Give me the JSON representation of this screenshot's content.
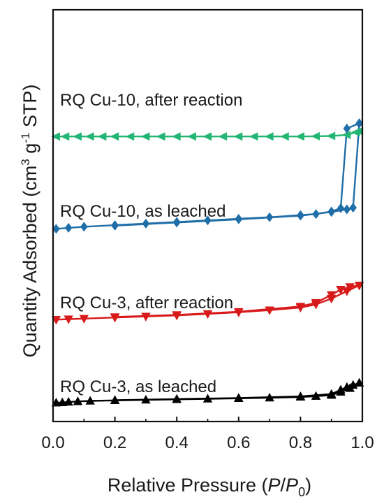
{
  "chart_data": {
    "type": "line",
    "xlabel": "Relative Pressure (P/P0)",
    "xlabel_parts": [
      "Relative Pressure (",
      "P",
      "/",
      "P",
      "0",
      ")"
    ],
    "ylabel": "Quantity Adsorbed (cm3 g-1 STP)",
    "ylabel_parts": [
      "Quantity Adsorbed (cm",
      "3",
      " g",
      "-1",
      " STP)"
    ],
    "xlim": [
      0.0,
      1.0
    ],
    "xticks": [
      "0.0",
      "0.2",
      "0.4",
      "0.6",
      "0.8",
      "1.0"
    ],
    "yticks_shown": false,
    "grid": false,
    "legend": "none",
    "series": [
      {
        "name": "RQ Cu-3, as leached",
        "color": "#000000",
        "marker": "triangle-up",
        "adsorption": [
          [
            0.01,
            0.55
          ],
          [
            0.03,
            0.6
          ],
          [
            0.05,
            0.7
          ],
          [
            0.08,
            0.8
          ],
          [
            0.12,
            0.9
          ],
          [
            0.2,
            1.0
          ],
          [
            0.3,
            1.1
          ],
          [
            0.4,
            1.2
          ],
          [
            0.5,
            1.3
          ],
          [
            0.6,
            1.4
          ],
          [
            0.7,
            1.5
          ],
          [
            0.8,
            1.65
          ],
          [
            0.85,
            1.8
          ],
          [
            0.9,
            2.0
          ],
          [
            0.93,
            2.6
          ],
          [
            0.96,
            3.3
          ],
          [
            0.99,
            4.3
          ]
        ],
        "desorption": [
          [
            0.99,
            4.3
          ],
          [
            0.97,
            3.9
          ],
          [
            0.95,
            3.5
          ],
          [
            0.93,
            3.0
          ],
          [
            0.9,
            2.2
          ],
          [
            0.8,
            1.75
          ],
          [
            0.6,
            1.45
          ],
          [
            0.4,
            1.25
          ],
          [
            0.2,
            1.05
          ]
        ]
      },
      {
        "name": "RQ Cu-3, after reaction",
        "color": "#d91a1a",
        "marker": "triangle-down",
        "adsorption": [
          [
            0.01,
            16.3
          ],
          [
            0.05,
            16.4
          ],
          [
            0.1,
            16.5
          ],
          [
            0.2,
            16.7
          ],
          [
            0.3,
            16.9
          ],
          [
            0.4,
            17.1
          ],
          [
            0.5,
            17.4
          ],
          [
            0.6,
            17.7
          ],
          [
            0.7,
            18.1
          ],
          [
            0.8,
            18.6
          ],
          [
            0.85,
            19.2
          ],
          [
            0.9,
            20.3
          ],
          [
            0.95,
            21.7
          ],
          [
            0.99,
            22.8
          ]
        ],
        "desorption": [
          [
            0.99,
            22.8
          ],
          [
            0.96,
            22.5
          ],
          [
            0.93,
            22.0
          ],
          [
            0.9,
            21.0
          ],
          [
            0.85,
            19.5
          ],
          [
            0.8,
            18.8
          ],
          [
            0.6,
            17.8
          ],
          [
            0.4,
            17.2
          ],
          [
            0.2,
            16.8
          ]
        ]
      },
      {
        "name": "RQ Cu-10, as leached",
        "color": "#1f6ea8",
        "marker": "diamond",
        "adsorption": [
          [
            0.01,
            33.5
          ],
          [
            0.05,
            33.7
          ],
          [
            0.1,
            33.9
          ],
          [
            0.2,
            34.2
          ],
          [
            0.3,
            34.5
          ],
          [
            0.4,
            34.8
          ],
          [
            0.5,
            35.1
          ],
          [
            0.6,
            35.4
          ],
          [
            0.7,
            35.7
          ],
          [
            0.8,
            36.1
          ],
          [
            0.85,
            36.3
          ],
          [
            0.9,
            36.8
          ],
          [
            0.93,
            37.4
          ],
          [
            0.95,
            52.5
          ],
          [
            0.99,
            53.5
          ]
        ],
        "desorption": [
          [
            0.99,
            53.5
          ],
          [
            0.97,
            37.5
          ],
          [
            0.95,
            37.2
          ],
          [
            0.9,
            36.7
          ],
          [
            0.8,
            36.0
          ],
          [
            0.6,
            35.3
          ],
          [
            0.4,
            34.7
          ],
          [
            0.2,
            34.1
          ]
        ]
      },
      {
        "name": "RQ Cu-10, after reaction",
        "color": "#22b573",
        "marker": "triangle-left",
        "adsorption": [
          [
            0.01,
            51.0
          ],
          [
            0.04,
            51.0
          ],
          [
            0.08,
            51.0
          ],
          [
            0.12,
            51.0
          ],
          [
            0.16,
            51.0
          ],
          [
            0.2,
            51.0
          ],
          [
            0.25,
            51.0
          ],
          [
            0.3,
            51.0
          ],
          [
            0.35,
            51.0
          ],
          [
            0.4,
            51.0
          ],
          [
            0.45,
            51.0
          ],
          [
            0.5,
            51.0
          ],
          [
            0.55,
            51.0
          ],
          [
            0.6,
            51.0
          ],
          [
            0.65,
            51.0
          ],
          [
            0.7,
            51.0
          ],
          [
            0.75,
            51.0
          ],
          [
            0.8,
            51.0
          ],
          [
            0.85,
            51.05
          ],
          [
            0.9,
            51.1
          ],
          [
            0.95,
            51.3
          ],
          [
            0.98,
            51.8
          ],
          [
            0.99,
            52.0
          ]
        ],
        "desorption": []
      }
    ]
  }
}
